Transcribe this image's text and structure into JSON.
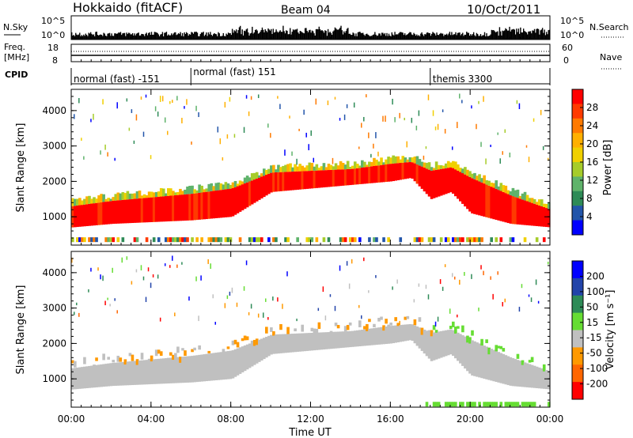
{
  "header": {
    "station": "Hokkaido (fitACF)",
    "beam": "Beam 04",
    "date": "10/Oct/2011"
  },
  "strips": {
    "nsky_label": "N.Sky",
    "nsky_ticks": [
      "10^5",
      "10^0"
    ],
    "nsearch_label": "N.Search",
    "freq_label_1": "Freq.",
    "freq_label_2": "[MHz]",
    "freq_ticks": [
      "18",
      "8"
    ],
    "nave_label": "Nave",
    "nave_ticks": [
      "60",
      "0"
    ],
    "cpid_label": "CPID",
    "cpid_segments": [
      {
        "label": "normal (fast) -151",
        "start_h": 0,
        "end_h": 6
      },
      {
        "label": "normal (fast) 151",
        "start_h": 6,
        "end_h": 18
      },
      {
        "label": "themis 3300",
        "start_h": 18,
        "end_h": 24
      }
    ]
  },
  "power_colorbar": {
    "label": "Power [dB]",
    "ticks": [
      "28",
      "24",
      "20",
      "16",
      "12",
      "8",
      "4"
    ],
    "colors": [
      "#ff0000",
      "#ff3a00",
      "#ff7a00",
      "#ffb000",
      "#f0d000",
      "#a6cc2a",
      "#5fb36b",
      "#2e8b57",
      "#2255aa",
      "#0000ff"
    ]
  },
  "velocity_colorbar": {
    "label": "Velocity [m s⁻¹]",
    "ticks": [
      "200",
      "100",
      "50",
      "15",
      "-15",
      "-50",
      "-100",
      "-200"
    ],
    "colors": [
      "#0000ff",
      "#2244aa",
      "#2e8b57",
      "#66dd33",
      "#c0c0c0",
      "#ff9900",
      "#ff6600",
      "#ff0000"
    ]
  },
  "chart_data": {
    "type": "heatmap",
    "xlabel": "Time UT",
    "x_tick_labels": [
      "00:00",
      "04:00",
      "08:00",
      "12:00",
      "16:00",
      "20:00",
      "00:00"
    ],
    "x_range_hours": [
      0,
      24
    ],
    "ylabel": "Slant Range [km]",
    "y_tick_labels": [
      "1000",
      "2000",
      "3000",
      "4000"
    ],
    "ylim": [
      200,
      4600
    ],
    "panels": [
      {
        "name": "Power",
        "echo_band_range_km": [
          [
            0,
            700,
            1300
          ],
          [
            2,
            800,
            1450
          ],
          [
            4,
            850,
            1550
          ],
          [
            6,
            900,
            1650
          ],
          [
            8,
            1000,
            1800
          ],
          [
            10,
            1700,
            2250
          ],
          [
            12,
            1800,
            2300
          ],
          [
            14,
            1900,
            2350
          ],
          [
            16,
            2000,
            2500
          ],
          [
            17,
            2100,
            2550
          ],
          [
            18,
            1500,
            2300
          ],
          [
            19,
            1700,
            2400
          ],
          [
            20,
            1100,
            2100
          ],
          [
            22,
            800,
            1600
          ],
          [
            24,
            700,
            1200
          ]
        ],
        "dominant_power_db": 28
      },
      {
        "name": "Velocity",
        "echo_band_range_km": [
          [
            0,
            700,
            1300
          ],
          [
            2,
            800,
            1450
          ],
          [
            4,
            850,
            1550
          ],
          [
            6,
            900,
            1650
          ],
          [
            8,
            1000,
            1800
          ],
          [
            10,
            1700,
            2250
          ],
          [
            12,
            1800,
            2300
          ],
          [
            14,
            1900,
            2350
          ],
          [
            16,
            2000,
            2500
          ],
          [
            17,
            2100,
            2550
          ],
          [
            18,
            1500,
            2300
          ],
          [
            19,
            1700,
            2400
          ],
          [
            20,
            1100,
            2100
          ],
          [
            22,
            800,
            1600
          ],
          [
            24,
            700,
            1200
          ]
        ],
        "dominant_velocity_ms": 0
      }
    ]
  }
}
